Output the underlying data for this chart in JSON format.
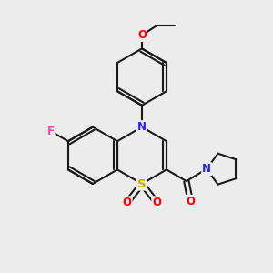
{
  "bg_color": "#ececec",
  "bond_color": "#1a1a1a",
  "bond_width": 1.5,
  "atom_colors": {
    "N": "#2222ff",
    "S": "#ccaa00",
    "O": "#ff0000",
    "F": "#ff44aa",
    "C": "#1a1a1a"
  },
  "font_size_atom": 8.5,
  "figsize": [
    3.0,
    3.0
  ],
  "dpi": 100
}
